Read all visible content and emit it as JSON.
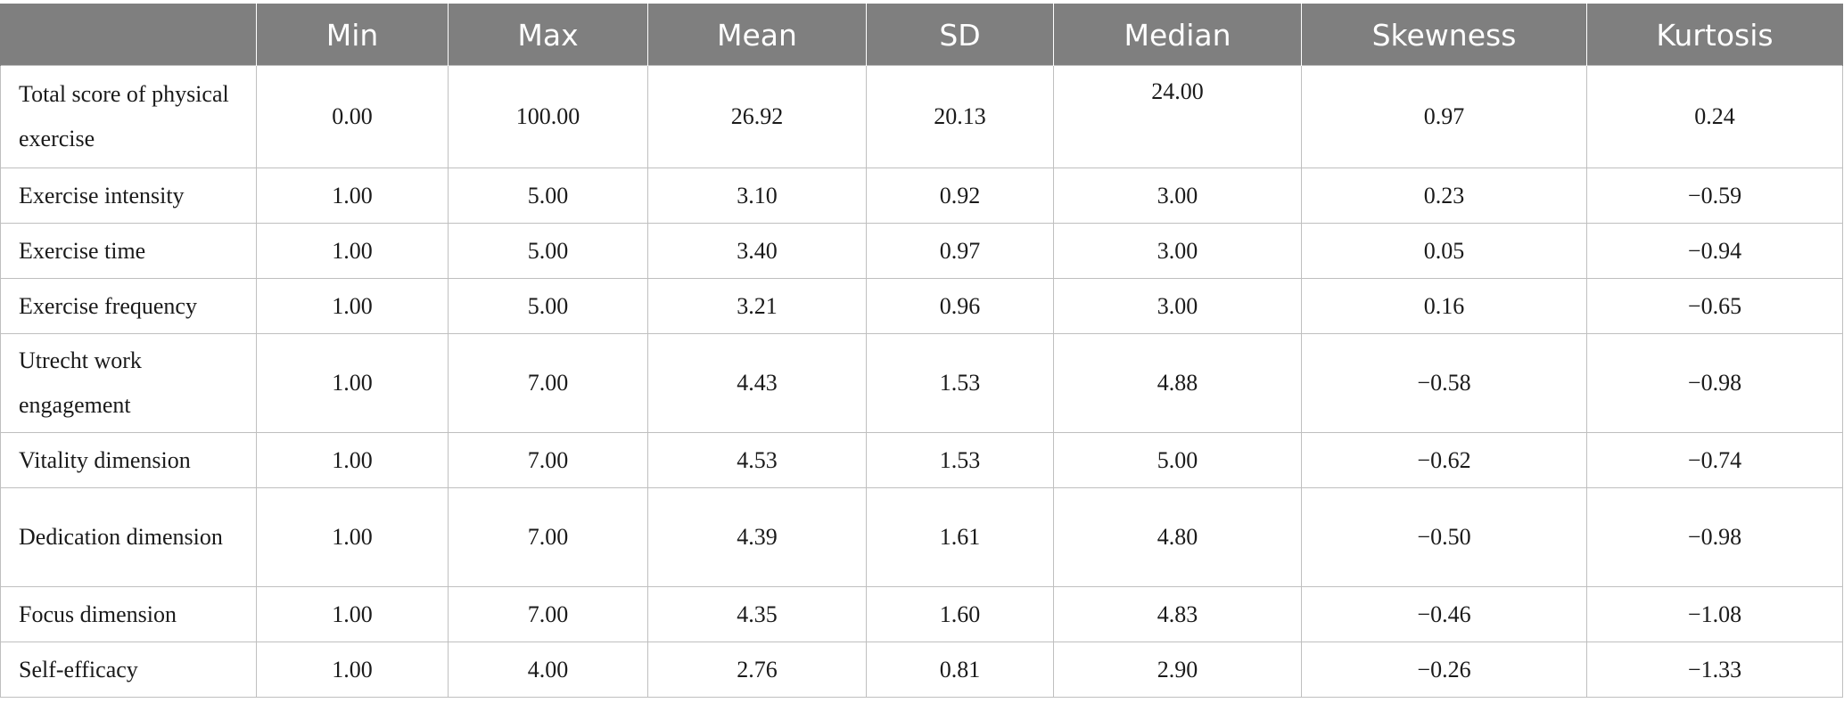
{
  "table": {
    "headers": [
      "",
      "Min",
      "Max",
      "Mean",
      "SD",
      "Median",
      "Skewness",
      "Kurtosis"
    ],
    "rows": [
      {
        "label": "Total score of physical exercise",
        "values": [
          "0.00",
          "100.00",
          "26.92",
          "20.13",
          "24.00",
          "0.97",
          "0.24"
        ]
      },
      {
        "label": "Exercise intensity",
        "values": [
          "1.00",
          "5.00",
          "3.10",
          "0.92",
          "3.00",
          "0.23",
          "−0.59"
        ]
      },
      {
        "label": "Exercise time",
        "values": [
          "1.00",
          "5.00",
          "3.40",
          "0.97",
          "3.00",
          "0.05",
          "−0.94"
        ]
      },
      {
        "label": "Exercise frequency",
        "values": [
          "1.00",
          "5.00",
          "3.21",
          "0.96",
          "3.00",
          "0.16",
          "−0.65"
        ]
      },
      {
        "label": "Utrecht work engagement",
        "values": [
          "1.00",
          "7.00",
          "4.43",
          "1.53",
          "4.88",
          "−0.58",
          "−0.98"
        ]
      },
      {
        "label": "Vitality dimension",
        "values": [
          "1.00",
          "7.00",
          "4.53",
          "1.53",
          "5.00",
          "−0.62",
          "−0.74"
        ]
      },
      {
        "label": "Dedication dimension",
        "values": [
          "1.00",
          "7.00",
          "4.39",
          "1.61",
          "4.80",
          "−0.50",
          "−0.98"
        ]
      },
      {
        "label": "Focus dimension",
        "values": [
          "1.00",
          "7.00",
          "4.35",
          "1.60",
          "4.83",
          "−0.46",
          "−1.08"
        ]
      },
      {
        "label": "Self-efficacy",
        "values": [
          "1.00",
          "4.00",
          "2.76",
          "0.81",
          "2.90",
          "−0.26",
          "−1.33"
        ]
      }
    ]
  }
}
